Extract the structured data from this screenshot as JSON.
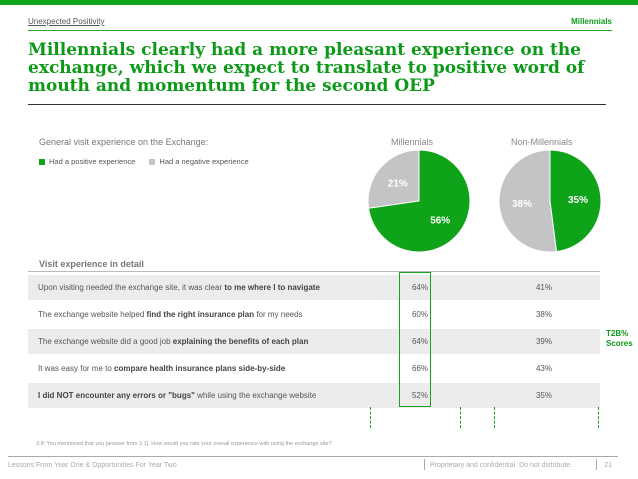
{
  "header": {
    "section": "Unexpected Positivity",
    "tag": "Millennials"
  },
  "title": "Millennials clearly had a more pleasant experience on the exchange, which we expect to translate to positive word of mouth and momentum for the second OEP",
  "colors": {
    "positive": "#0fa31a",
    "negative": "#c2c4c6",
    "accent": "#0e9a19"
  },
  "chart_data": [
    {
      "type": "pie",
      "subhead": "General visit experience on the Exchange:",
      "legend": [
        "Had a positive experience",
        "Had a negative experience"
      ],
      "pies": [
        {
          "title": "Millennials",
          "values": {
            "positive": 56,
            "negative": 21
          },
          "labels": {
            "positive": "56%",
            "negative": "21%"
          }
        },
        {
          "title": "Non-Millennials",
          "values": {
            "positive": 35,
            "negative": 38
          },
          "labels": {
            "positive": "35%",
            "negative": "38%"
          }
        }
      ]
    },
    {
      "type": "table",
      "title": "Visit experience in detail",
      "rows": [
        {
          "label": "Upon visiting needed the exchange site, it was clear to me where I to navigate",
          "millennials": "64%",
          "non_millennials": "41%"
        },
        {
          "label": "The exchange website helped find the right insurance plan for my needs",
          "millennials": "60%",
          "non_millennials": "38%"
        },
        {
          "label": "The exchange website did a good job explaining the benefits of each plan",
          "millennials": "64%",
          "non_millennials": "39%"
        },
        {
          "label": "It was easy for me to compare health insurance plans side-by-side",
          "millennials": "66%",
          "non_millennials": "43%"
        },
        {
          "label": "I did NOT encounter any errors or \"bugs\" while using the exchange website",
          "millennials": "52%",
          "non_millennials": "35%"
        }
      ],
      "side_note": "T2B% Scores"
    }
  ],
  "footnote": "3.8: You mentioned that you [answer from 3.1]. How would you rate your overall experience with using the exchange site?",
  "footer": {
    "left": "Lessons From Year One & Opportunities For Year Two",
    "right": "Proprietary and confidential. Do not distribute.",
    "page": "21"
  }
}
